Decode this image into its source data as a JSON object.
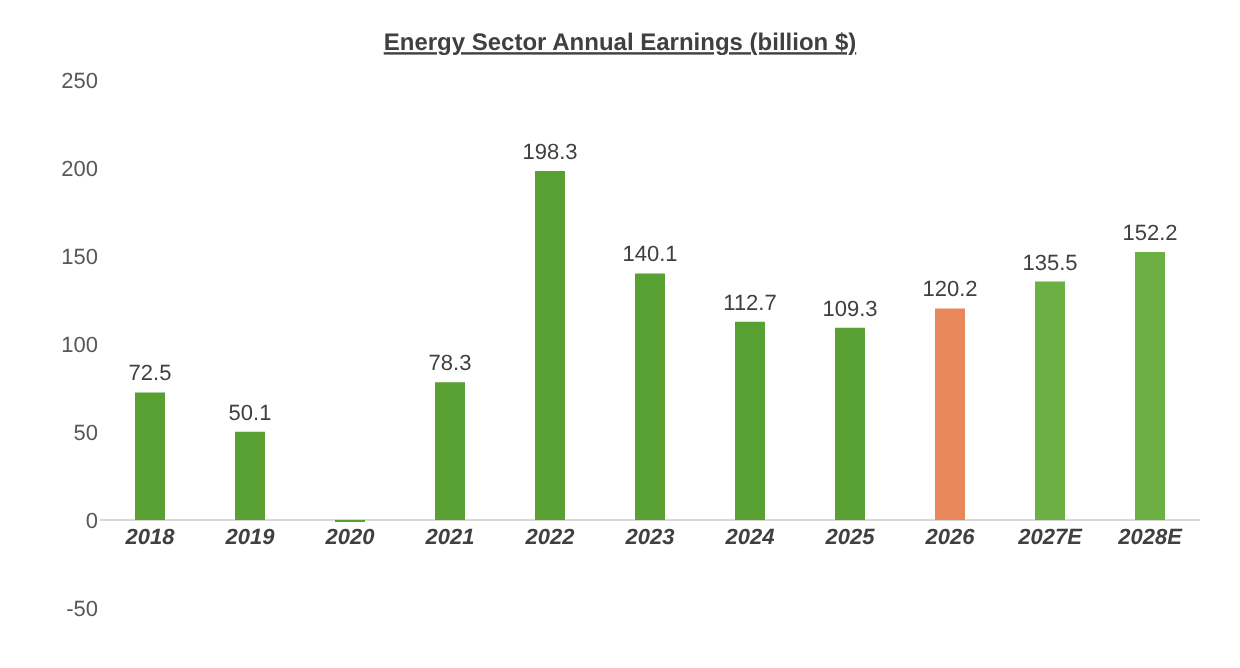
{
  "chart_data": {
    "type": "bar",
    "title": "Energy Sector Annual Earnings (billion $)",
    "categories": [
      "2018",
      "2019",
      "2020",
      "2021",
      "2022",
      "2023",
      "2024",
      "2025",
      "2026",
      "2027E",
      "2028E"
    ],
    "values": [
      72.5,
      50.1,
      -1,
      78.3,
      198.3,
      140.1,
      112.7,
      109.3,
      120.2,
      135.5,
      152.2
    ],
    "value_labels": [
      "72.5",
      "50.1",
      null,
      "78.3",
      "198.3",
      "140.1",
      "112.7",
      "109.3",
      "120.2",
      "135.5",
      "152.2"
    ],
    "colors": [
      "#58a032",
      "#58a032",
      "#58a032",
      "#58a032",
      "#58a032",
      "#58a032",
      "#58a032",
      "#58a032",
      "#e8875a",
      "#6cb043",
      "#6cb043"
    ],
    "ylim": [
      -50,
      250
    ],
    "yticks": [
      -50,
      0,
      50,
      100,
      150,
      200,
      250
    ],
    "legend": false
  }
}
